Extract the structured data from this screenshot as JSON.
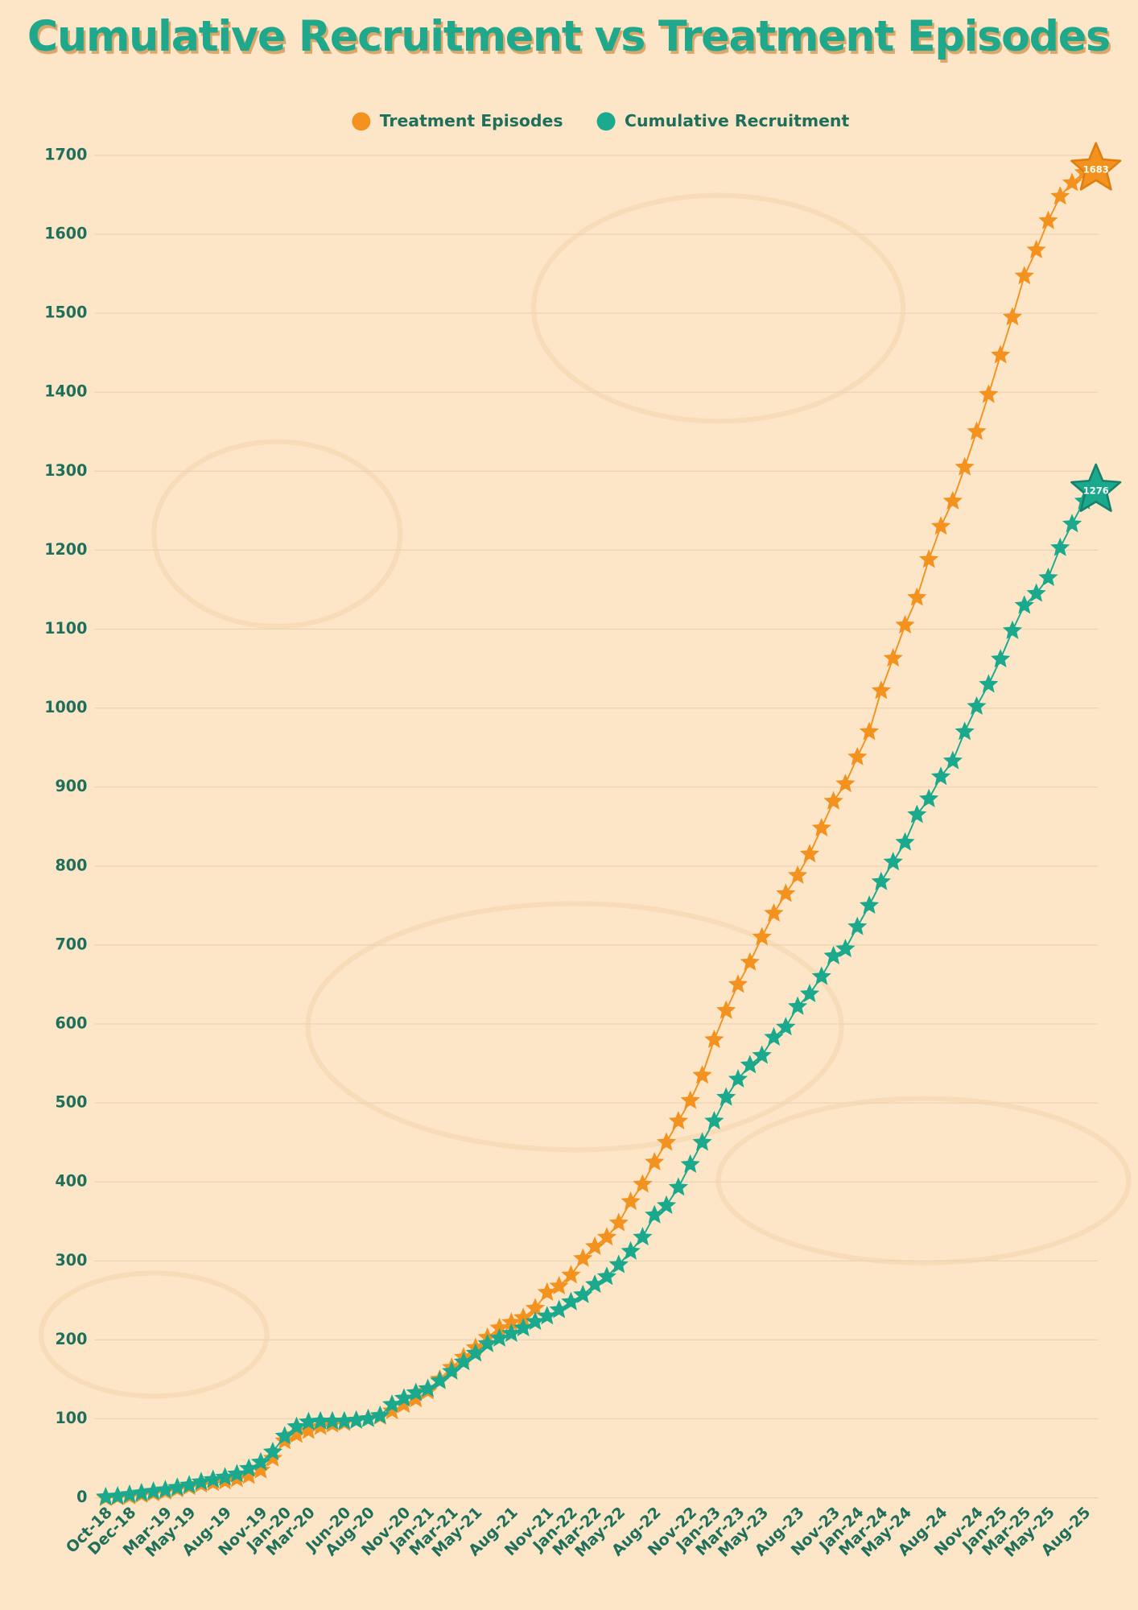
{
  "chart_data": {
    "type": "line",
    "title": "Cumulative Recruitment vs Treatment Episodes",
    "categories": [
      "Oct-18",
      null,
      "Dec-18",
      null,
      null,
      "Mar-19",
      null,
      "May-19",
      null,
      null,
      "Aug-19",
      null,
      null,
      "Nov-19",
      null,
      "Jan-20",
      null,
      "Mar-20",
      null,
      null,
      "Jun-20",
      null,
      "Aug-20",
      null,
      null,
      "Nov-20",
      null,
      "Jan-21",
      null,
      "Mar-21",
      null,
      "May-21",
      null,
      null,
      "Aug-21",
      null,
      null,
      "Nov-21",
      null,
      "Jan-22",
      null,
      "Mar-22",
      null,
      "May-22",
      null,
      null,
      "Aug-22",
      null,
      null,
      "Nov-22",
      null,
      "Jan-23",
      null,
      "Mar-23",
      null,
      "May-23",
      null,
      null,
      "Aug-23",
      null,
      null,
      "Nov-23",
      null,
      "Jan-24",
      null,
      "Mar-24",
      null,
      "May-24",
      null,
      null,
      "Aug-24",
      null,
      null,
      "Nov-24",
      null,
      "Jan-25",
      null,
      "Mar-25",
      null,
      "May-25",
      null,
      null,
      "Aug-25",
      null
    ],
    "series": [
      {
        "name": "Treatment Episodes",
        "color": "#f3921f",
        "values": [
          0,
          1,
          2,
          4,
          6,
          8,
          11,
          14,
          17,
          19,
          21,
          24,
          28,
          35,
          50,
          72,
          80,
          85,
          90,
          93,
          95,
          98,
          100,
          103,
          110,
          118,
          125,
          135,
          150,
          165,
          178,
          190,
          203,
          215,
          222,
          228,
          240,
          260,
          268,
          282,
          303,
          318,
          330,
          348,
          375,
          397,
          425,
          450,
          477,
          503,
          535,
          580,
          617,
          650,
          678,
          710,
          740,
          765,
          788,
          815,
          848,
          882,
          904,
          938,
          970,
          1022,
          1063,
          1105,
          1140,
          1188,
          1230,
          1262,
          1305,
          1350,
          1397,
          1447,
          1495,
          1547,
          1580,
          1617,
          1648,
          1665,
          1678,
          1683
        ]
      },
      {
        "name": "Cumulative Recruitment",
        "color": "#1aa98d",
        "values": [
          1,
          2,
          4,
          6,
          8,
          10,
          13,
          16,
          20,
          23,
          26,
          30,
          37,
          45,
          58,
          78,
          90,
          96,
          97,
          97,
          97,
          98,
          100,
          104,
          118,
          126,
          133,
          138,
          148,
          160,
          172,
          183,
          195,
          202,
          208,
          215,
          223,
          230,
          238,
          248,
          257,
          270,
          280,
          295,
          312,
          330,
          358,
          370,
          393,
          422,
          450,
          477,
          507,
          530,
          548,
          560,
          583,
          596,
          622,
          638,
          660,
          686,
          695,
          723,
          750,
          780,
          805,
          830,
          865,
          885,
          913,
          933,
          970,
          1002,
          1030,
          1062,
          1098,
          1130,
          1145,
          1165,
          1203,
          1233,
          1262,
          1276
        ]
      }
    ],
    "ylim": [
      0,
      1700
    ],
    "yticks": [
      0,
      100,
      200,
      300,
      400,
      500,
      600,
      700,
      800,
      900,
      1000,
      1100,
      1200,
      1300,
      1400,
      1500,
      1600,
      1700
    ],
    "grid": true,
    "legend": "top"
  }
}
